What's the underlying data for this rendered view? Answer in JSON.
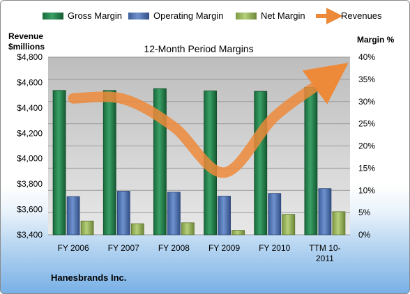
{
  "chart_data": {
    "type": "bar",
    "title": "12-Month Period Margins",
    "company": "Hanesbrands Inc.",
    "categories": [
      "FY 2006",
      "FY 2007",
      "FY 2008",
      "FY 2009",
      "FY 2010",
      "TTM 10-2011"
    ],
    "y_left": {
      "label_line1": "Revenue",
      "label_line2": "$millions",
      "range": [
        3400,
        4800
      ],
      "ticks": [
        3400,
        3600,
        3800,
        4000,
        4200,
        4400,
        4600,
        4800
      ],
      "tick_labels": [
        "$3,400",
        "$3,600",
        "$3,800",
        "$4,000",
        "$4,200",
        "$4,400",
        "$4,600",
        "$4,800"
      ]
    },
    "y_right": {
      "label": "Margin %",
      "range": [
        0,
        40
      ],
      "ticks": [
        0,
        5,
        10,
        15,
        20,
        25,
        30,
        35,
        40
      ],
      "tick_labels": [
        "0%",
        "5%",
        "10%",
        "15%",
        "20%",
        "25%",
        "30%",
        "35%",
        "40%"
      ]
    },
    "series": [
      {
        "name": "Gross Margin",
        "axis": "right",
        "color": "#1e7a45",
        "values": [
          32.5,
          32.5,
          32.9,
          32.4,
          32.3,
          33.2
        ]
      },
      {
        "name": "Operating Margin",
        "axis": "right",
        "color": "#4a6fb0",
        "values": [
          8.6,
          9.8,
          9.6,
          8.7,
          9.3,
          10.4
        ]
      },
      {
        "name": "Net Margin",
        "axis": "right",
        "color": "#96b45a",
        "values": [
          3.1,
          2.5,
          2.7,
          1.0,
          4.6,
          5.2
        ]
      },
      {
        "name": "Revenues",
        "axis": "left",
        "color": "#ed8a3a",
        "type": "line",
        "values": [
          4475,
          4470,
          4250,
          3890,
          4330,
          4620
        ]
      }
    ],
    "legend_position": "top",
    "grid": true
  }
}
